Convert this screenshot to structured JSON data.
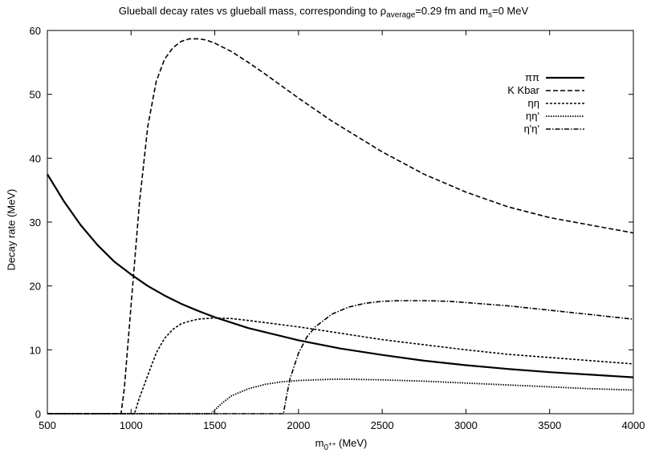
{
  "chart_data": {
    "type": "line",
    "title": {
      "prefix": "Glueball decay rates vs glueball mass, corresponding to ρ",
      "sub1": "average",
      "middle": "=0.29 fm and m",
      "sub2": "s",
      "suffix": "=0 MeV"
    },
    "xlabel": {
      "base": "m",
      "sub": "0",
      "sup": "++",
      "suffix": " (MeV)"
    },
    "ylabel": "Decay rate (MeV)",
    "xlim": [
      500,
      4000
    ],
    "ylim": [
      0,
      60
    ],
    "xticks": [
      500,
      1000,
      1500,
      2000,
      2500,
      3000,
      3500,
      4000
    ],
    "yticks": [
      0,
      10,
      20,
      30,
      40,
      50,
      60
    ],
    "grid": false,
    "legend_position": "top-right",
    "series": [
      {
        "name": "ππ",
        "dash": "",
        "width": 2.2,
        "x": [
          500,
          600,
          700,
          800,
          900,
          1000,
          1100,
          1200,
          1300,
          1400,
          1500,
          1700,
          2000,
          2250,
          2500,
          2750,
          3000,
          3250,
          3500,
          3750,
          4000
        ],
        "y": [
          37.5,
          33.2,
          29.5,
          26.4,
          23.8,
          21.8,
          20.0,
          18.5,
          17.2,
          16.1,
          15.1,
          13.4,
          11.5,
          10.2,
          9.2,
          8.3,
          7.6,
          7.0,
          6.5,
          6.1,
          5.7
        ]
      },
      {
        "name": "K Kbar",
        "dash": "6,3",
        "width": 1.6,
        "x": [
          500,
          940,
          960,
          1000,
          1050,
          1100,
          1150,
          1200,
          1250,
          1300,
          1350,
          1400,
          1450,
          1500,
          1600,
          1700,
          1800,
          2000,
          2200,
          2500,
          2750,
          3000,
          3250,
          3500,
          3750,
          4000
        ],
        "y": [
          0,
          0,
          4.0,
          17.0,
          33.0,
          45.0,
          52.0,
          55.5,
          57.3,
          58.3,
          58.7,
          58.7,
          58.5,
          58.0,
          56.7,
          55.0,
          53.2,
          49.4,
          45.8,
          41.0,
          37.5,
          34.7,
          32.4,
          30.7,
          29.5,
          28.3
        ]
      },
      {
        "name": "ηη",
        "dash": "3,2",
        "width": 1.6,
        "x": [
          500,
          1020,
          1050,
          1100,
          1150,
          1200,
          1250,
          1300,
          1350,
          1400,
          1500,
          1600,
          1700,
          2000,
          2250,
          2500,
          2750,
          3000,
          3250,
          3500,
          3750,
          4000
        ],
        "y": [
          0,
          0,
          2.5,
          6.0,
          9.5,
          11.8,
          13.2,
          14.1,
          14.5,
          14.8,
          15.0,
          14.9,
          14.6,
          13.6,
          12.6,
          11.6,
          10.8,
          10.0,
          9.3,
          8.8,
          8.3,
          7.8
        ]
      },
      {
        "name": "ηη'",
        "dash": "1.5,1.5",
        "width": 1.8,
        "x": [
          500,
          1480,
          1500,
          1550,
          1600,
          1700,
          1800,
          1900,
          2000,
          2100,
          2200,
          2300,
          2500,
          2750,
          3000,
          3250,
          3500,
          3750,
          4000
        ],
        "y": [
          0,
          0,
          0.6,
          1.8,
          2.8,
          3.9,
          4.6,
          5.0,
          5.2,
          5.3,
          5.4,
          5.4,
          5.3,
          5.1,
          4.8,
          4.5,
          4.2,
          3.9,
          3.7
        ]
      },
      {
        "name": "η'η'",
        "dash": "6,2,1.5,2",
        "width": 1.6,
        "x": [
          500,
          1910,
          1930,
          1950,
          2000,
          2050,
          2100,
          2200,
          2300,
          2400,
          2500,
          2600,
          2750,
          2900,
          3000,
          3250,
          3500,
          3750,
          4000
        ],
        "y": [
          0,
          0,
          3.0,
          5.5,
          9.5,
          12.0,
          13.6,
          15.6,
          16.7,
          17.3,
          17.6,
          17.7,
          17.7,
          17.6,
          17.4,
          16.9,
          16.2,
          15.5,
          14.8
        ]
      }
    ]
  }
}
